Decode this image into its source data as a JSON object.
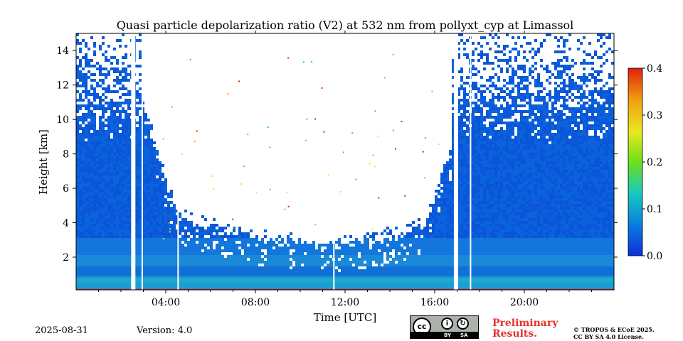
{
  "chart_data": {
    "type": "heatmap",
    "title": "Quasi particle depolarization ratio (V2) at 532 nm from pollyxt_cyp at Limassol",
    "xlabel": "Time [UTC]",
    "ylabel": "Height [km]",
    "xlim": [
      0,
      24
    ],
    "ylim": [
      0.1,
      15
    ],
    "x_ticks": [
      4,
      8,
      12,
      16,
      20
    ],
    "x_tick_labels": [
      "04:00",
      "08:00",
      "12:00",
      "16:00",
      "20:00"
    ],
    "y_ticks": [
      2,
      4,
      6,
      8,
      10,
      12,
      14
    ],
    "y_tick_labels": [
      "2",
      "4",
      "6",
      "8",
      "10",
      "12",
      "14"
    ],
    "colorbar": {
      "range": [
        0.0,
        0.4
      ],
      "ticks": [
        0.0,
        0.1,
        0.2,
        0.3,
        0.4
      ],
      "tick_labels": [
        "0.0",
        "0.1",
        "0.2",
        "0.3",
        "0.4"
      ],
      "colors": [
        "#0a30d6",
        "#0a7ae0",
        "#16c8c0",
        "#6ee01a",
        "#e8e820",
        "#f0a010",
        "#e02010"
      ]
    },
    "approx_values": {
      "boundary_layer_depolarization": 0.05,
      "free_troposphere_depolarization": 0.02,
      "daytime_signal_floor_km": [
        {
          "time": 2.9,
          "height": 10.5
        },
        {
          "time": 4.5,
          "height": 4.0
        },
        {
          "time": 8.0,
          "height": 2.8
        },
        {
          "time": 11.0,
          "height": 2.3
        },
        {
          "time": 13.5,
          "height": 2.7
        },
        {
          "time": 15.5,
          "height": 3.5
        },
        {
          "time": 16.7,
          "height": 8.0
        }
      ],
      "data_gaps_utc": [
        2.55,
        2.95,
        4.55,
        11.5,
        16.95,
        17.6
      ]
    }
  },
  "footer": {
    "date": "2025-08-31",
    "version": "Version: 4.0",
    "license_by": "BY",
    "license_sa": "SA",
    "license_cc": "cc",
    "preliminary_line1": "Preliminary",
    "preliminary_line2": "Results.",
    "copyright_line1": "© TROPOS & ECoE 2025.",
    "copyright_line2": "CC BY SA 4.0 License."
  }
}
